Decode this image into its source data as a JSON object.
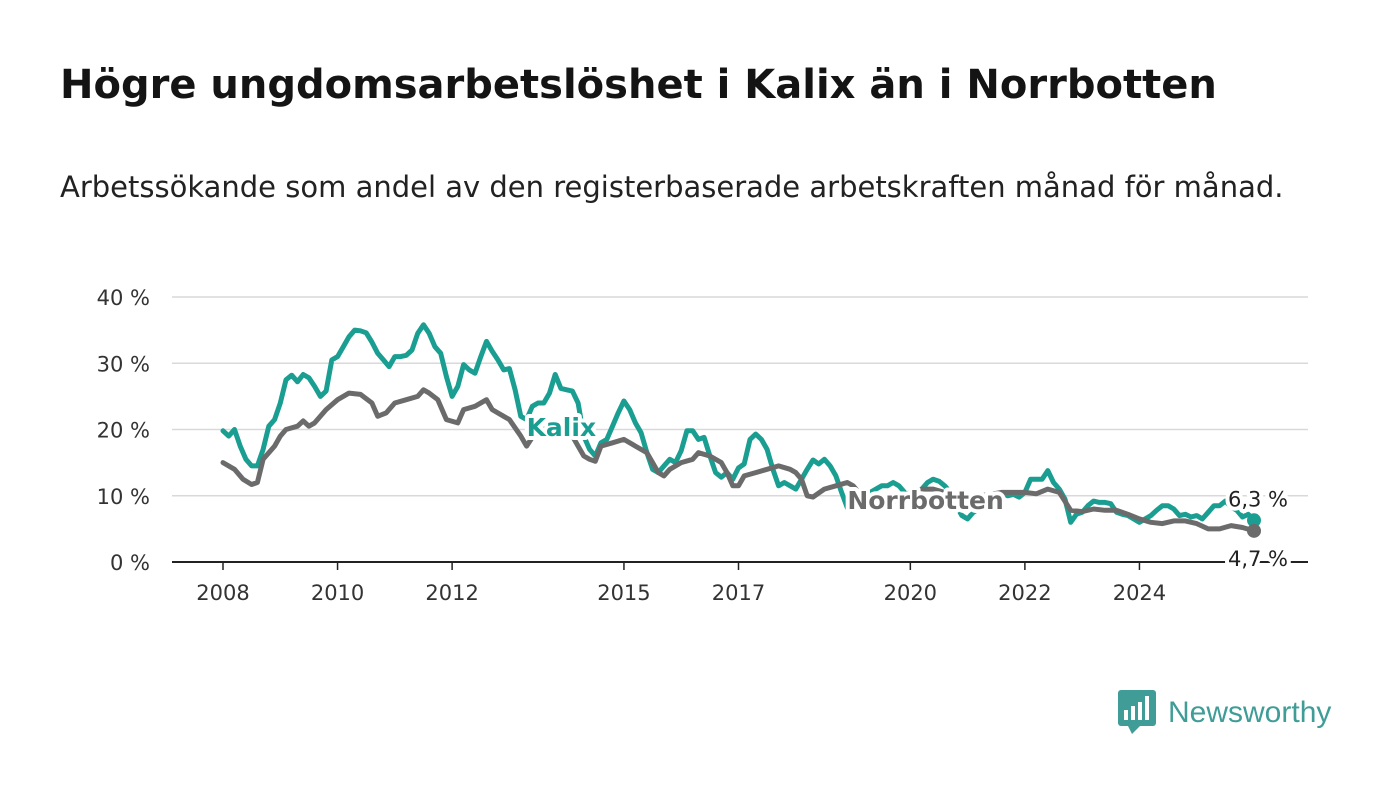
{
  "title": "Högre ungdomsarbetslöshet i Kalix än i Norrbotten",
  "subtitle": "Arbetssökande som andel av den registerbaserade arbetskraften månad för månad.",
  "brand": {
    "name": "Newsworthy",
    "color": "#3f9c97",
    "icon": "bar-chart-logo-icon"
  },
  "chart_data": {
    "type": "line",
    "title": "",
    "xlabel": "",
    "ylabel": "",
    "ylim": [
      0,
      40
    ],
    "yticks": [
      0,
      10,
      20,
      30,
      40
    ],
    "ytick_labels": [
      "0 %",
      "10 %",
      "20 %",
      "30 %",
      "40 %"
    ],
    "xticks": [
      2008,
      2010,
      2012,
      2015,
      2017,
      2020,
      2022,
      2024
    ],
    "xtick_labels": [
      "2008",
      "2010",
      "2012",
      "2015",
      "2017",
      "2020",
      "2022",
      "2024"
    ],
    "grid": true,
    "legend": "inline labels",
    "series": [
      {
        "name": "Kalix",
        "color": "#1a9e92",
        "end_label": "6,3 %",
        "points": [
          [
            2008.0,
            19.8
          ],
          [
            2008.1,
            19.0
          ],
          [
            2008.2,
            20.0
          ],
          [
            2008.3,
            17.5
          ],
          [
            2008.4,
            15.5
          ],
          [
            2008.5,
            14.5
          ],
          [
            2008.6,
            14.5
          ],
          [
            2008.7,
            17.0
          ],
          [
            2008.8,
            20.5
          ],
          [
            2008.9,
            21.5
          ],
          [
            2009.0,
            24.0
          ],
          [
            2009.1,
            27.5
          ],
          [
            2009.2,
            28.2
          ],
          [
            2009.3,
            27.2
          ],
          [
            2009.4,
            28.3
          ],
          [
            2009.5,
            27.8
          ],
          [
            2009.6,
            26.5
          ],
          [
            2009.7,
            25.0
          ],
          [
            2009.8,
            25.8
          ],
          [
            2009.9,
            30.5
          ],
          [
            2010.0,
            31.0
          ],
          [
            2010.1,
            32.5
          ],
          [
            2010.2,
            34.0
          ],
          [
            2010.3,
            35.0
          ],
          [
            2010.4,
            34.9
          ],
          [
            2010.5,
            34.6
          ],
          [
            2010.6,
            33.2
          ],
          [
            2010.7,
            31.5
          ],
          [
            2010.8,
            30.5
          ],
          [
            2010.9,
            29.5
          ],
          [
            2011.0,
            31.0
          ],
          [
            2011.1,
            31.0
          ],
          [
            2011.2,
            31.2
          ],
          [
            2011.3,
            32.0
          ],
          [
            2011.4,
            34.5
          ],
          [
            2011.5,
            35.8
          ],
          [
            2011.6,
            34.5
          ],
          [
            2011.7,
            32.5
          ],
          [
            2011.8,
            31.5
          ],
          [
            2011.9,
            28.0
          ],
          [
            2012.0,
            25.0
          ],
          [
            2012.1,
            26.5
          ],
          [
            2012.2,
            29.8
          ],
          [
            2012.3,
            29.0
          ],
          [
            2012.4,
            28.5
          ],
          [
            2012.5,
            31.0
          ],
          [
            2012.6,
            33.3
          ],
          [
            2012.7,
            31.8
          ],
          [
            2012.8,
            30.5
          ],
          [
            2012.9,
            29.0
          ],
          [
            2013.0,
            29.2
          ],
          [
            2013.1,
            26.0
          ],
          [
            2013.2,
            22.0
          ],
          [
            2013.3,
            21.5
          ],
          [
            2013.4,
            23.5
          ],
          [
            2013.5,
            24.0
          ],
          [
            2013.6,
            24.0
          ],
          [
            2013.7,
            25.5
          ],
          [
            2013.8,
            28.3
          ],
          [
            2013.9,
            26.2
          ],
          [
            2014.0,
            26.0
          ],
          [
            2014.1,
            25.8
          ],
          [
            2014.2,
            24.0
          ],
          [
            2014.3,
            19.0
          ],
          [
            2014.4,
            17.0
          ],
          [
            2014.5,
            16.0
          ],
          [
            2014.6,
            18.0
          ],
          [
            2014.7,
            18.5
          ],
          [
            2014.8,
            20.5
          ],
          [
            2014.9,
            22.5
          ],
          [
            2015.0,
            24.3
          ],
          [
            2015.1,
            23.0
          ],
          [
            2015.2,
            21.0
          ],
          [
            2015.3,
            19.5
          ],
          [
            2015.4,
            16.5
          ],
          [
            2015.5,
            14.0
          ],
          [
            2015.6,
            13.5
          ],
          [
            2015.7,
            14.5
          ],
          [
            2015.8,
            15.5
          ],
          [
            2015.9,
            15.0
          ],
          [
            2016.0,
            16.8
          ],
          [
            2016.1,
            19.8
          ],
          [
            2016.2,
            19.8
          ],
          [
            2016.3,
            18.5
          ],
          [
            2016.4,
            18.8
          ],
          [
            2016.5,
            16.0
          ],
          [
            2016.6,
            13.5
          ],
          [
            2016.7,
            12.8
          ],
          [
            2016.8,
            13.5
          ],
          [
            2016.9,
            12.5
          ],
          [
            2017.0,
            14.2
          ],
          [
            2017.1,
            14.8
          ],
          [
            2017.2,
            18.5
          ],
          [
            2017.3,
            19.3
          ],
          [
            2017.4,
            18.5
          ],
          [
            2017.5,
            17.0
          ],
          [
            2017.6,
            14.0
          ],
          [
            2017.7,
            11.5
          ],
          [
            2017.8,
            12.0
          ],
          [
            2017.9,
            11.5
          ],
          [
            2018.0,
            11.0
          ],
          [
            2018.1,
            12.5
          ],
          [
            2018.2,
            14.0
          ],
          [
            2018.3,
            15.4
          ],
          [
            2018.4,
            14.8
          ],
          [
            2018.5,
            15.5
          ],
          [
            2018.6,
            14.5
          ],
          [
            2018.7,
            13.0
          ],
          [
            2018.8,
            10.5
          ],
          [
            2018.9,
            8.2
          ],
          [
            2019.0,
            8.0
          ],
          [
            2019.1,
            8.8
          ],
          [
            2019.2,
            10.0
          ],
          [
            2019.3,
            10.5
          ],
          [
            2019.4,
            11.0
          ],
          [
            2019.5,
            11.5
          ],
          [
            2019.6,
            11.5
          ],
          [
            2019.7,
            12.0
          ],
          [
            2019.8,
            11.5
          ],
          [
            2019.9,
            10.5
          ],
          [
            2020.0,
            9.5
          ],
          [
            2020.1,
            10.0
          ],
          [
            2020.2,
            11.0
          ],
          [
            2020.3,
            12.0
          ],
          [
            2020.4,
            12.5
          ],
          [
            2020.5,
            12.2
          ],
          [
            2020.6,
            11.5
          ],
          [
            2020.7,
            10.5
          ],
          [
            2020.8,
            8.5
          ],
          [
            2020.9,
            7.0
          ],
          [
            2021.0,
            6.5
          ],
          [
            2021.1,
            7.5
          ],
          [
            2021.2,
            8.0
          ],
          [
            2021.3,
            8.5
          ],
          [
            2021.4,
            9.5
          ],
          [
            2021.5,
            10.0
          ],
          [
            2021.6,
            10.5
          ],
          [
            2021.7,
            10.0
          ],
          [
            2021.8,
            10.2
          ],
          [
            2021.9,
            9.8
          ],
          [
            2022.0,
            10.5
          ],
          [
            2022.1,
            12.5
          ],
          [
            2022.2,
            12.5
          ],
          [
            2022.3,
            12.5
          ],
          [
            2022.4,
            13.8
          ],
          [
            2022.5,
            12.0
          ],
          [
            2022.6,
            11.0
          ],
          [
            2022.7,
            9.5
          ],
          [
            2022.8,
            6.0
          ],
          [
            2022.9,
            7.2
          ],
          [
            2023.0,
            7.5
          ],
          [
            2023.1,
            8.5
          ],
          [
            2023.2,
            9.2
          ],
          [
            2023.3,
            9.0
          ],
          [
            2023.4,
            9.0
          ],
          [
            2023.5,
            8.8
          ],
          [
            2023.6,
            7.5
          ],
          [
            2023.7,
            7.2
          ],
          [
            2023.8,
            7.0
          ],
          [
            2023.9,
            6.5
          ],
          [
            2024.0,
            6.0
          ],
          [
            2024.1,
            6.5
          ],
          [
            2024.2,
            7.0
          ],
          [
            2024.3,
            7.8
          ],
          [
            2024.4,
            8.5
          ],
          [
            2024.5,
            8.5
          ],
          [
            2024.6,
            8.0
          ],
          [
            2024.7,
            7.0
          ],
          [
            2024.8,
            7.2
          ],
          [
            2024.9,
            6.8
          ],
          [
            2025.0,
            7.0
          ],
          [
            2025.1,
            6.5
          ],
          [
            2025.2,
            7.5
          ],
          [
            2025.3,
            8.5
          ],
          [
            2025.4,
            8.5
          ],
          [
            2025.5,
            9.2
          ],
          [
            2025.6,
            8.3
          ],
          [
            2025.7,
            7.8
          ],
          [
            2025.8,
            6.8
          ],
          [
            2025.9,
            7.2
          ],
          [
            2026.0,
            6.3
          ]
        ]
      },
      {
        "name": "Norrbotten",
        "color": "#6b6b6b",
        "end_label": "4,7 %",
        "points": [
          [
            2008.0,
            15.0
          ],
          [
            2008.2,
            14.0
          ],
          [
            2008.35,
            12.5
          ],
          [
            2008.5,
            11.7
          ],
          [
            2008.6,
            12.0
          ],
          [
            2008.7,
            15.5
          ],
          [
            2008.8,
            16.5
          ],
          [
            2008.9,
            17.5
          ],
          [
            2009.0,
            19.0
          ],
          [
            2009.1,
            20.0
          ],
          [
            2009.3,
            20.5
          ],
          [
            2009.4,
            21.3
          ],
          [
            2009.5,
            20.5
          ],
          [
            2009.6,
            21.0
          ],
          [
            2009.8,
            23.0
          ],
          [
            2010.0,
            24.5
          ],
          [
            2010.2,
            25.5
          ],
          [
            2010.4,
            25.3
          ],
          [
            2010.6,
            24.0
          ],
          [
            2010.7,
            22.0
          ],
          [
            2010.85,
            22.5
          ],
          [
            2011.0,
            24.0
          ],
          [
            2011.2,
            24.5
          ],
          [
            2011.4,
            25.0
          ],
          [
            2011.5,
            26.0
          ],
          [
            2011.6,
            25.5
          ],
          [
            2011.75,
            24.5
          ],
          [
            2011.9,
            21.5
          ],
          [
            2012.1,
            21.0
          ],
          [
            2012.2,
            23.0
          ],
          [
            2012.4,
            23.5
          ],
          [
            2012.6,
            24.5
          ],
          [
            2012.7,
            23.0
          ],
          [
            2012.9,
            22.0
          ],
          [
            2013.0,
            21.5
          ],
          [
            2013.2,
            19.0
          ],
          [
            2013.3,
            17.5
          ],
          [
            2013.45,
            19.5
          ],
          [
            2013.6,
            20.0
          ],
          [
            2013.8,
            21.0
          ],
          [
            2014.0,
            20.0
          ],
          [
            2014.1,
            19.0
          ],
          [
            2014.2,
            17.5
          ],
          [
            2014.3,
            16.0
          ],
          [
            2014.4,
            15.5
          ],
          [
            2014.5,
            15.2
          ],
          [
            2014.6,
            17.5
          ],
          [
            2014.8,
            18.0
          ],
          [
            2015.0,
            18.5
          ],
          [
            2015.2,
            17.5
          ],
          [
            2015.4,
            16.5
          ],
          [
            2015.5,
            15.0
          ],
          [
            2015.6,
            13.5
          ],
          [
            2015.7,
            13.0
          ],
          [
            2015.8,
            14.0
          ],
          [
            2016.0,
            15.0
          ],
          [
            2016.2,
            15.5
          ],
          [
            2016.3,
            16.5
          ],
          [
            2016.5,
            16.0
          ],
          [
            2016.7,
            15.0
          ],
          [
            2016.8,
            13.5
          ],
          [
            2016.9,
            11.5
          ],
          [
            2017.0,
            11.5
          ],
          [
            2017.1,
            13.0
          ],
          [
            2017.3,
            13.5
          ],
          [
            2017.5,
            14.0
          ],
          [
            2017.7,
            14.5
          ],
          [
            2017.9,
            14.0
          ],
          [
            2018.0,
            13.5
          ],
          [
            2018.1,
            12.5
          ],
          [
            2018.2,
            10.0
          ],
          [
            2018.3,
            9.8
          ],
          [
            2018.5,
            11.0
          ],
          [
            2018.7,
            11.5
          ],
          [
            2018.9,
            12.0
          ],
          [
            2019.0,
            11.5
          ],
          [
            2019.1,
            10.5
          ],
          [
            2019.2,
            9.0
          ],
          [
            2019.4,
            8.0
          ],
          [
            2019.6,
            8.5
          ],
          [
            2019.8,
            9.5
          ],
          [
            2020.0,
            10.5
          ],
          [
            2020.2,
            11.0
          ],
          [
            2020.4,
            11.0
          ],
          [
            2020.6,
            10.5
          ],
          [
            2020.8,
            10.0
          ],
          [
            2021.0,
            9.8
          ],
          [
            2021.2,
            10.0
          ],
          [
            2021.4,
            10.2
          ],
          [
            2021.6,
            10.5
          ],
          [
            2021.8,
            10.5
          ],
          [
            2022.0,
            10.5
          ],
          [
            2022.2,
            10.3
          ],
          [
            2022.4,
            11.0
          ],
          [
            2022.6,
            10.5
          ],
          [
            2022.8,
            7.8
          ],
          [
            2023.0,
            7.6
          ],
          [
            2023.2,
            8.0
          ],
          [
            2023.4,
            7.8
          ],
          [
            2023.6,
            7.8
          ],
          [
            2023.8,
            7.2
          ],
          [
            2024.0,
            6.5
          ],
          [
            2024.2,
            6.0
          ],
          [
            2024.4,
            5.8
          ],
          [
            2024.6,
            6.2
          ],
          [
            2024.8,
            6.2
          ],
          [
            2025.0,
            5.8
          ],
          [
            2025.2,
            5.0
          ],
          [
            2025.4,
            5.0
          ],
          [
            2025.6,
            5.5
          ],
          [
            2025.8,
            5.2
          ],
          [
            2026.0,
            4.7
          ]
        ]
      }
    ]
  }
}
